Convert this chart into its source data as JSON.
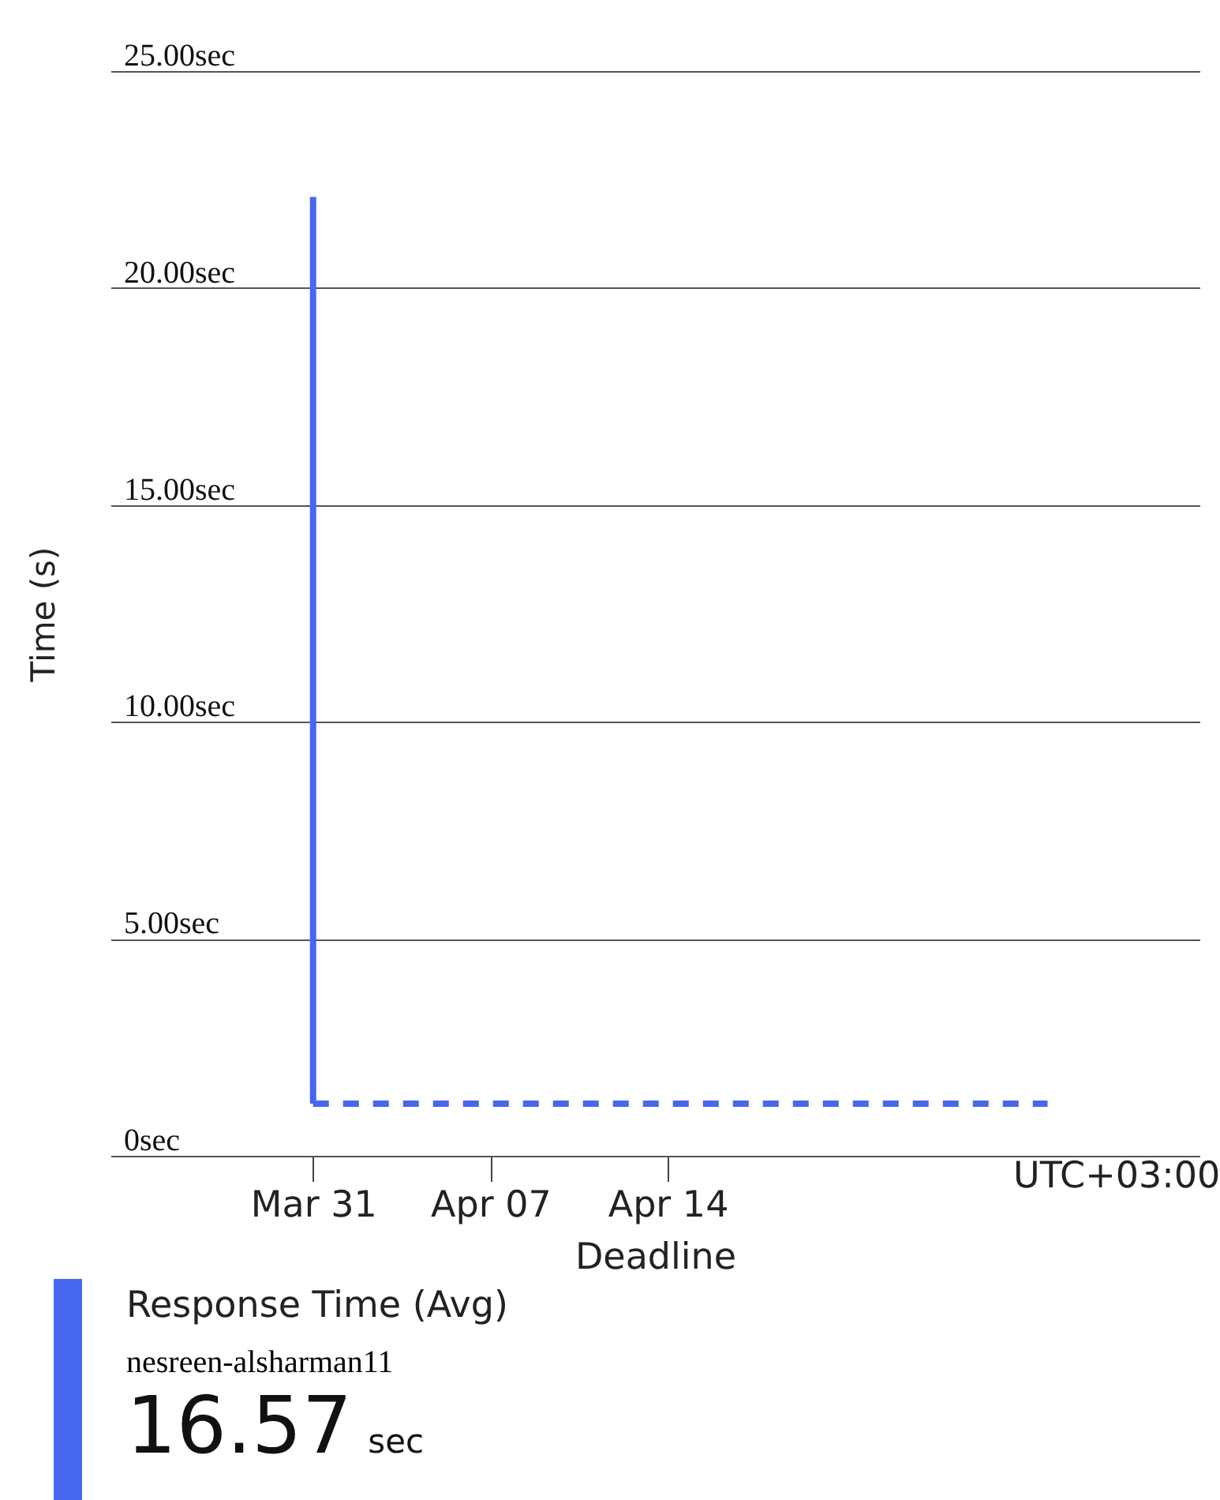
{
  "chart_data": {
    "type": "line",
    "xlabel": "Deadline",
    "ylabel": "Time (s)",
    "xlim": [
      "--03-23",
      "--05-05"
    ],
    "xticks": [
      {
        "value": "--03-31",
        "label": "Mar 31"
      },
      {
        "value": "--04-07",
        "label": "Apr 07"
      },
      {
        "value": "--04-14",
        "label": "Apr 14"
      }
    ],
    "ylim": [
      0,
      25
    ],
    "yticks": [
      {
        "value": 0,
        "label": "0sec"
      },
      {
        "value": 5,
        "label": "5.00sec"
      },
      {
        "value": 10,
        "label": "10.00sec"
      },
      {
        "value": 15,
        "label": "15.00sec"
      },
      {
        "value": 20,
        "label": "20.00sec"
      },
      {
        "value": 25,
        "label": "25.00sec"
      }
    ],
    "grid": "y",
    "marker": "none",
    "series": [
      {
        "color": "#4767ee",
        "line_style": "solid",
        "x": [
          "--03-31",
          "--03-31"
        ],
        "values": [
          22.1,
          1.2
        ]
      },
      {
        "color": "#4767ee",
        "line_style": "dashed",
        "x": [
          "--03-31",
          "--04-29"
        ],
        "values": [
          1.2,
          1.2
        ]
      }
    ],
    "annotations": [
      "UTC+03:00",
      "Response Time (Avg)",
      "nesreen-alsharman11",
      "16.57 sec"
    ]
  }
}
